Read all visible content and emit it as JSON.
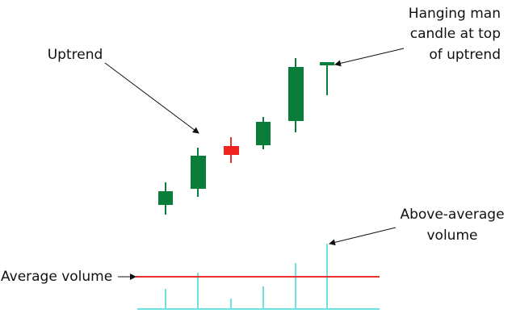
{
  "annotations": {
    "uptrend": {
      "lines": [
        "Uptrend"
      ]
    },
    "hanging_man": {
      "lines": [
        "Hanging man",
        "candle at top",
        "of uptrend"
      ]
    },
    "above_average": {
      "lines": [
        "Above-average",
        "volume"
      ]
    },
    "average_volume": {
      "lines": [
        "Average volume"
      ]
    }
  }
}
